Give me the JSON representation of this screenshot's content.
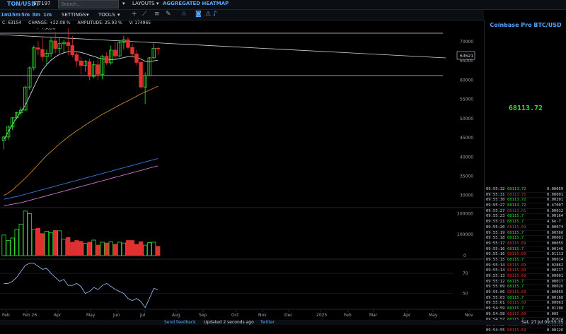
{
  "topbar": {
    "pair": "TON/USDT",
    "pair_price": "6.7197",
    "search_placeholder": "Search...",
    "layouts_label": "LAYOUTS",
    "heatmap_label": "AGGREGATED HEATMAP"
  },
  "toolbar": {
    "timeframes": [
      "1m",
      "15m",
      "5m",
      "3m",
      "1m"
    ],
    "settings_label": "SETTINGS",
    "tools_label": "TOOLS",
    "icons": [
      "plus-icon",
      "line-icon",
      "hline-icon",
      "draw-icon",
      "star-icon",
      "camera-icon",
      "alert-icon"
    ]
  },
  "stats": {
    "close": "C: 63154",
    "change": "CHANGE: +22.08 %",
    "amplitude": "AMPLITUDE: 25.93 %",
    "volume": "V: 174965"
  },
  "chart_data": {
    "type": "candlestick",
    "y_axis_ticks": [
      "70000",
      "65000",
      "60000",
      "55000",
      "50000",
      "45000",
      "40000",
      "35000",
      "30000"
    ],
    "volume_axis_ticks": [
      "200000",
      "100000",
      "0"
    ],
    "oscillator_axis_ticks": [
      "70",
      "50"
    ],
    "x_axis_labels": [
      "Feb",
      "Feb 26",
      "Apr",
      "May",
      "Jun",
      "Jul",
      "Aug",
      "Sep",
      "Oct",
      "Nov",
      "Dec",
      "2025",
      "Feb",
      "Mar",
      "Apr",
      "May",
      "Nov"
    ],
    "high_marker": "73836",
    "current_price_label": "63621",
    "ylim": [
      27000,
      73500
    ],
    "candles": [
      {
        "o": 44200,
        "h": 45500,
        "l": 42000,
        "c": 45200
      },
      {
        "o": 45200,
        "h": 48200,
        "l": 44500,
        "c": 47800
      },
      {
        "o": 47800,
        "h": 50300,
        "l": 47000,
        "c": 50200
      },
      {
        "o": 50200,
        "h": 51800,
        "l": 49800,
        "c": 51500
      },
      {
        "o": 51500,
        "h": 53000,
        "l": 50800,
        "c": 52200
      },
      {
        "o": 52200,
        "h": 58500,
        "l": 52000,
        "c": 58200
      },
      {
        "o": 58200,
        "h": 63600,
        "l": 57500,
        "c": 63200
      },
      {
        "o": 63200,
        "h": 69000,
        "l": 62500,
        "c": 68400
      },
      {
        "o": 68400,
        "h": 70200,
        "l": 66500,
        "c": 68000
      },
      {
        "o": 68000,
        "h": 71000,
        "l": 65000,
        "c": 66100
      },
      {
        "o": 66100,
        "h": 68000,
        "l": 64000,
        "c": 67000
      },
      {
        "o": 67000,
        "h": 71000,
        "l": 66000,
        "c": 70200
      },
      {
        "o": 70200,
        "h": 72500,
        "l": 67000,
        "c": 68200
      },
      {
        "o": 68200,
        "h": 71000,
        "l": 67000,
        "c": 69500
      },
      {
        "o": 69500,
        "h": 70500,
        "l": 67000,
        "c": 69800
      },
      {
        "o": 69800,
        "h": 73800,
        "l": 66500,
        "c": 69000
      },
      {
        "o": 69000,
        "h": 71500,
        "l": 66000,
        "c": 66600
      },
      {
        "o": 66600,
        "h": 67500,
        "l": 63500,
        "c": 65000
      },
      {
        "o": 65000,
        "h": 66000,
        "l": 61500,
        "c": 63800
      },
      {
        "o": 63800,
        "h": 65200,
        "l": 62200,
        "c": 64800
      },
      {
        "o": 64800,
        "h": 65600,
        "l": 60000,
        "c": 61000
      },
      {
        "o": 61000,
        "h": 65000,
        "l": 60500,
        "c": 64000
      },
      {
        "o": 64000,
        "h": 65500,
        "l": 60000,
        "c": 61500
      },
      {
        "o": 61500,
        "h": 66500,
        "l": 60200,
        "c": 66200
      },
      {
        "o": 66200,
        "h": 67200,
        "l": 64000,
        "c": 64500
      },
      {
        "o": 64500,
        "h": 69000,
        "l": 64000,
        "c": 67800
      },
      {
        "o": 67800,
        "h": 70000,
        "l": 65200,
        "c": 66300
      },
      {
        "o": 66300,
        "h": 70500,
        "l": 66000,
        "c": 69800
      },
      {
        "o": 69800,
        "h": 71500,
        "l": 68000,
        "c": 70500
      },
      {
        "o": 70500,
        "h": 71200,
        "l": 68000,
        "c": 68500
      },
      {
        "o": 68500,
        "h": 69500,
        "l": 66000,
        "c": 66800
      },
      {
        "o": 66800,
        "h": 67800,
        "l": 63800,
        "c": 64600
      },
      {
        "o": 64600,
        "h": 65000,
        "l": 57800,
        "c": 58200
      },
      {
        "o": 58200,
        "h": 62000,
        "l": 53800,
        "c": 61200
      },
      {
        "o": 61200,
        "h": 66000,
        "l": 61000,
        "c": 65800
      },
      {
        "o": 65800,
        "h": 69500,
        "l": 65500,
        "c": 68300
      },
      {
        "o": 68300,
        "h": 68700,
        "l": 66500,
        "c": 68113
      }
    ],
    "volumes": [
      98000,
      72000,
      84000,
      125000,
      150000,
      212000,
      200000,
      125000,
      130000,
      105000,
      116000,
      110000,
      120000,
      118000,
      78000,
      86000,
      64000,
      72000,
      68000,
      58000,
      64000,
      74000,
      50000,
      64000,
      60000,
      66000,
      54000,
      64000,
      60000,
      72000,
      72000,
      54000,
      66000,
      50000,
      62000,
      64000,
      44000
    ],
    "ma_fast": [
      44500,
      46500,
      48500,
      50200,
      51800,
      53500,
      55800,
      58200,
      60500,
      62600,
      64000,
      65200,
      66000,
      66700,
      67100,
      67400,
      67500,
      67400,
      67200,
      66900,
      66500,
      66200,
      65800,
      65500,
      65400,
      65300,
      65400,
      65600,
      65900,
      66100,
      66100,
      65900,
      65500,
      64900,
      64800,
      65000,
      65200
    ],
    "ma_mid": [
      30000,
      30600,
      31400,
      32400,
      33400,
      34500,
      35600,
      36800,
      38000,
      39200,
      40400,
      41400,
      42400,
      43400,
      44300,
      45200,
      46000,
      46800,
      47500,
      48300,
      49000,
      49700,
      50400,
      51100,
      51700,
      52300,
      52900,
      53500,
      54100,
      54600,
      55200,
      55800,
      56400,
      56900,
      57400,
      57900,
      58400
    ],
    "ma_slow": [
      29000,
      29200,
      29500,
      29700,
      30000,
      30300,
      30600,
      30900,
      31200,
      31500,
      31800,
      32100,
      32400,
      32700,
      33000,
      33300,
      33600,
      33900,
      34200,
      34500,
      34800,
      35100,
      35400,
      35700,
      36000,
      36300,
      36600,
      36900,
      37200,
      37500,
      37800,
      38100,
      38400,
      38700,
      39000,
      39300,
      39600
    ],
    "ma_pink": [
      27300,
      27500,
      27700,
      27900,
      28100,
      28400,
      28700,
      29000,
      29300,
      29600,
      29900,
      30200,
      30500,
      30800,
      31100,
      31400,
      31700,
      32000,
      32300,
      32600,
      32900,
      33200,
      33500,
      33800,
      34100,
      34400,
      34700,
      35000,
      35300,
      35600,
      35900,
      36200,
      36500,
      36800,
      37100,
      37400,
      37700
    ],
    "oscillator": [
      60,
      60,
      62,
      66,
      72,
      78,
      80,
      80,
      77,
      74,
      75,
      70,
      66,
      62,
      64,
      58,
      58,
      60,
      57,
      50,
      52,
      56,
      54,
      58,
      60,
      57,
      54,
      52,
      50,
      45,
      43,
      45,
      42,
      36,
      45,
      55,
      54
    ]
  },
  "right_panel": {
    "title": "Coinbase Pro BTC/USD",
    "price": "68113.72",
    "trades": [
      {
        "time": "09:55:32",
        "price": "68113.72",
        "size": "0.00059",
        "side": "buy"
      },
      {
        "time": "09:55:31",
        "price": "68113.71",
        "size": "0.00001",
        "side": "sell"
      },
      {
        "time": "09:55:30",
        "price": "68113.72",
        "size": "0.00301",
        "side": "buy"
      },
      {
        "time": "09:55:27",
        "price": "68113.72",
        "size": "0.47007",
        "side": "buy"
      },
      {
        "time": "09:55:27",
        "price": "68113.61",
        "size": "0.00612",
        "side": "sell"
      },
      {
        "time": "09:55:23",
        "price": "68115.7",
        "size": "0.00164",
        "side": "buy"
      },
      {
        "time": "09:55:21",
        "price": "68115.7",
        "size": "4.6e-7",
        "side": "buy"
      },
      {
        "time": "09:55:20",
        "price": "68115.69",
        "size": "0.00074",
        "side": "sell"
      },
      {
        "time": "09:55:19",
        "price": "68115.7",
        "size": "0.00566",
        "side": "buy"
      },
      {
        "time": "09:55:18",
        "price": "68115.7",
        "size": "0.00001",
        "side": "buy"
      },
      {
        "time": "09:55:17",
        "price": "68115.69",
        "size": "0.00055",
        "side": "sell"
      },
      {
        "time": "09:55:16",
        "price": "68115.7",
        "size": "0.00146",
        "side": "buy"
      },
      {
        "time": "09:55:16",
        "price": "68115.69",
        "size": "0.01113",
        "side": "sell"
      },
      {
        "time": "09:55:15",
        "price": "68115.7",
        "size": "0.00014",
        "side": "buy"
      },
      {
        "time": "09:55:14",
        "price": "68115.69",
        "size": "0.02862",
        "side": "sell"
      },
      {
        "time": "09:55:14",
        "price": "68115.69",
        "size": "0.00217",
        "side": "sell"
      },
      {
        "time": "09:55:13",
        "price": "68115.69",
        "size": "0.00001",
        "side": "sell"
      },
      {
        "time": "09:55:12",
        "price": "68115.7",
        "size": "0.00017",
        "side": "buy"
      },
      {
        "time": "09:55:09",
        "price": "68115.7",
        "size": "0.00026",
        "side": "buy"
      },
      {
        "time": "09:55:06",
        "price": "68115.69",
        "size": "0.00055",
        "side": "sell"
      },
      {
        "time": "09:55:03",
        "price": "68115.7",
        "size": "0.00168",
        "side": "buy"
      },
      {
        "time": "09:55:01",
        "price": "68115.69",
        "size": "0.00063",
        "side": "sell"
      },
      {
        "time": "09:54:59",
        "price": "68115.7",
        "size": "0.01106",
        "side": "buy"
      },
      {
        "time": "09:54:58",
        "price": "68115.69",
        "size": "0.005",
        "side": "sell"
      },
      {
        "time": "09:54:57",
        "price": "68115.7",
        "size": "0.01074",
        "side": "buy"
      },
      {
        "time": "09:54:55",
        "price": "68115.69",
        "size": "0.01968",
        "side": "sell"
      },
      {
        "time": "09:54:55",
        "price": "68115.69",
        "size": "0.00126",
        "side": "sell"
      }
    ]
  },
  "bottombar": {
    "feedback": "Send feedback",
    "updated": "Updated 2 seconds ago",
    "twitter": "Twitter",
    "datetime": "Sat, 27 Jul 09:55:35"
  },
  "colors": {
    "accent": "#58a6ff",
    "up": "#2ee02e",
    "down": "#e03131",
    "ma_fast": "#cfd8e3",
    "ma_mid": "#c7862a",
    "ma_slow": "#3d7be0",
    "ma_pink": "#d27ad6",
    "oscillator": "#8fb4e6"
  }
}
